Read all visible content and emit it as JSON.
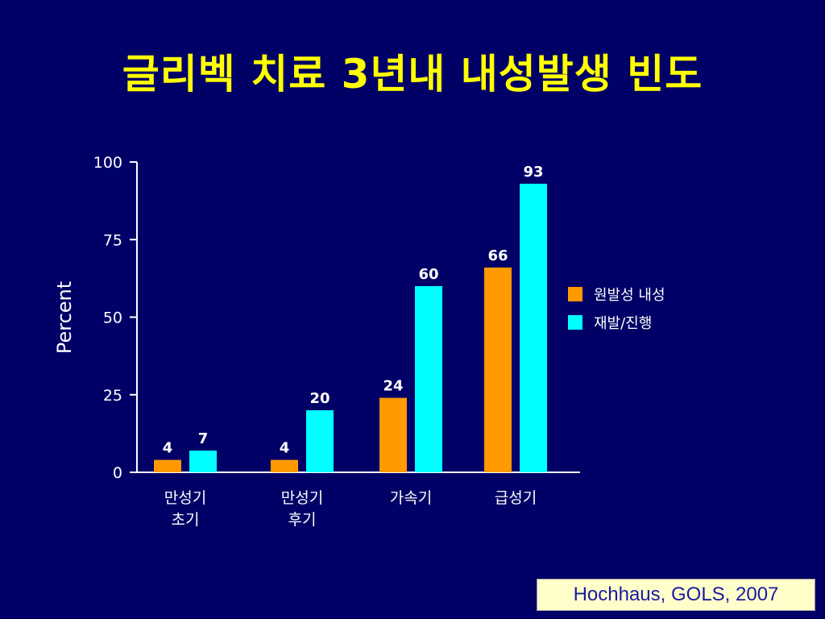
{
  "slide": {
    "title": "글리벡 치료 3년내 내성발생 빈도",
    "citation": "Hochhaus, GOLS, 2007"
  },
  "chart_data": {
    "type": "bar",
    "title": "",
    "xlabel": "",
    "ylabel": "Percent",
    "ylim": [
      0,
      100
    ],
    "yticks": [
      0,
      25,
      50,
      75,
      100
    ],
    "categories": [
      [
        "만성기",
        "초기"
      ],
      [
        "만성기",
        "후기"
      ],
      [
        "가속기"
      ],
      [
        "급성기"
      ]
    ],
    "series": [
      {
        "name": "원발성 내성",
        "color": "#ff9900",
        "values": [
          4,
          4,
          24,
          66
        ]
      },
      {
        "name": "재발/진행",
        "color": "#00ffff",
        "values": [
          7,
          20,
          60,
          93
        ]
      }
    ],
    "legend_position": "right",
    "grid": false,
    "axis_color": "#ffffff"
  }
}
